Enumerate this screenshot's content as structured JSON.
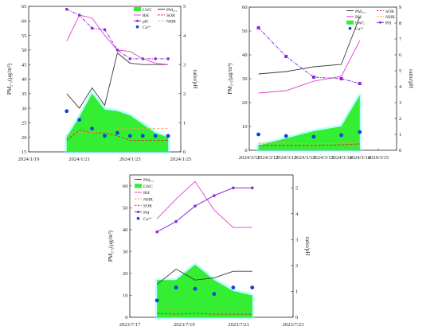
{
  "colors": {
    "pm": "#3a3a3a",
    "rh": "#e040d0",
    "ph": "#8a2ad8",
    "ca": "#1440e0",
    "sor": "#e02020",
    "nhr": "#f0a040",
    "lwc_fill": "#33ee33",
    "lwc_glow": "#7fffff"
  },
  "chart_data": [
    {
      "id": "a",
      "type": "line",
      "xlabel": "",
      "ylabel": "PM₂.₅(μg/m³)",
      "ylabel2": "ratio/pH",
      "ylim": [
        15,
        65
      ],
      "y2lim": [
        0,
        5
      ],
      "xlim": [
        -1.5,
        4.5
      ],
      "yticks": [
        15,
        20,
        25,
        30,
        35,
        40,
        45,
        50,
        55,
        60,
        65
      ],
      "y2ticks": [
        0,
        1,
        2,
        3,
        4,
        5
      ],
      "xticks": [
        {
          "x": -1.5,
          "label": "2024/1/19"
        },
        {
          "x": 0.5,
          "label": "2024/1/21"
        },
        {
          "x": 2.5,
          "label": "2024/1/23"
        },
        {
          "x": 4.5,
          "label": "2024/1/25"
        }
      ],
      "grid": false,
      "legend_position": "top-right",
      "legend": [
        {
          "key": "lwc",
          "label": "LWC"
        },
        {
          "key": "pm",
          "label": "PM₂.₅"
        },
        {
          "key": "rh",
          "label": "RH"
        },
        {
          "key": "sor",
          "label": "SOR"
        },
        {
          "key": "ph",
          "label": "pH"
        },
        {
          "key": "nhr",
          "label": "NHR"
        },
        {
          "key": "ca",
          "label": "Ca²⁺"
        }
      ],
      "series": [
        {
          "key": "lwc",
          "axis": "left",
          "style": "area",
          "x": [
            0,
            0.5,
            1,
            1.5,
            2,
            2.5,
            3,
            3.5,
            4
          ],
          "y": [
            20,
            27,
            35,
            29.5,
            29,
            27.5,
            24.5,
            21.5,
            20
          ]
        },
        {
          "key": "pm",
          "axis": "left",
          "style": "line",
          "x": [
            0,
            0.5,
            1,
            1.5,
            2,
            2.5,
            3,
            3.5,
            4
          ],
          "y": [
            35,
            30,
            37,
            31,
            49,
            45.5,
            45,
            45,
            45
          ]
        },
        {
          "key": "rh",
          "axis": "left",
          "style": "line",
          "x": [
            0,
            0.5,
            1,
            1.5,
            2,
            2.5,
            3,
            3.5,
            4
          ],
          "y": [
            53,
            62,
            61,
            55,
            50,
            49.5,
            47,
            45.5,
            45
          ]
        },
        {
          "key": "ph",
          "axis": "right",
          "style": "dashdot-marker",
          "x": [
            0,
            0.5,
            1,
            1.5,
            2,
            2.5,
            3,
            3.5,
            4
          ],
          "y": [
            4.9,
            4.7,
            4.25,
            4.2,
            3.5,
            3.2,
            3.2,
            3.2,
            3.2
          ]
        },
        {
          "key": "ca",
          "axis": "right",
          "style": "points",
          "x": [
            0,
            0.5,
            1,
            1.5,
            2,
            2.5,
            3,
            3.5,
            4
          ],
          "y": [
            1.4,
            1.1,
            0.8,
            0.55,
            0.65,
            0.55,
            0.55,
            0.55,
            0.55
          ]
        },
        {
          "key": "sor",
          "axis": "right",
          "style": "dashed",
          "x": [
            0,
            0.5,
            1,
            1.5,
            2,
            2.5,
            3,
            3.5,
            4
          ],
          "y": [
            0.4,
            0.75,
            0.65,
            0.65,
            0.55,
            0.4,
            0.4,
            0.4,
            0.4
          ]
        },
        {
          "key": "nhr",
          "axis": "right",
          "style": "dashed",
          "x": [
            0,
            0.5,
            1,
            1.5,
            2,
            2.5,
            3,
            3.5,
            4
          ],
          "y": [
            0.55,
            0.7,
            0.65,
            0.7,
            0.8,
            0.8,
            0.8,
            0.8,
            0.8
          ]
        }
      ]
    },
    {
      "id": "b",
      "type": "line",
      "xlabel": "",
      "ylabel": "PM₂.₅(μg/m³)",
      "ylabel2": "ratio/pH",
      "ylim": [
        0,
        60
      ],
      "y2lim": [
        0,
        9
      ],
      "xlim": [
        0,
        4
      ],
      "yticks": [
        0,
        10,
        20,
        30,
        40,
        50,
        60
      ],
      "y2ticks": [
        0,
        1,
        2,
        3,
        4,
        5,
        6,
        7,
        8,
        9
      ],
      "xticks": [
        {
          "x": 0,
          "label": "2024/3/11"
        },
        {
          "x": 0.5,
          "label": "2024/3/12"
        },
        {
          "x": 1,
          "label": "2024/3/12"
        },
        {
          "x": 1.5,
          "label": "2024/3/13"
        },
        {
          "x": 2,
          "label": "2024/3/13"
        },
        {
          "x": 2.5,
          "label": "2024/3/14"
        },
        {
          "x": 3,
          "label": "2024/3/14"
        },
        {
          "x": 3.5,
          "label": "2024/3/15"
        }
      ],
      "grid": false,
      "legend_position": "top-left",
      "legend": [
        {
          "key": "pm",
          "label": "PM₂.₅"
        },
        {
          "key": "sor",
          "label": "SOR"
        },
        {
          "key": "rh",
          "label": "RH"
        },
        {
          "key": "nhr",
          "label": "NHR"
        },
        {
          "key": "lwc",
          "label": "LWC"
        },
        {
          "key": "ph",
          "label": "PH"
        },
        {
          "key": "ca",
          "label": "Ca²⁺"
        }
      ],
      "series": [
        {
          "key": "lwc",
          "axis": "left",
          "style": "area",
          "x": [
            0.25,
            1.0,
            1.75,
            2.5,
            3.0
          ],
          "y": [
            2,
            5,
            8,
            10,
            23
          ]
        },
        {
          "key": "pm",
          "axis": "left",
          "style": "line",
          "x": [
            0.25,
            1.0,
            1.75,
            2.5,
            3.0
          ],
          "y": [
            32,
            33,
            35,
            36,
            56
          ]
        },
        {
          "key": "rh",
          "axis": "left",
          "style": "line",
          "x": [
            0.25,
            1.0,
            1.75,
            2.5,
            3.0
          ],
          "y": [
            24,
            25,
            29,
            31,
            46
          ]
        },
        {
          "key": "ph",
          "axis": "right",
          "style": "dashdot-marker",
          "x": [
            0.25,
            1.0,
            1.75,
            2.5,
            3.0
          ],
          "y": [
            7.7,
            5.9,
            4.6,
            4.5,
            4.2
          ]
        },
        {
          "key": "ca",
          "axis": "right",
          "style": "points",
          "x": [
            0.25,
            1.0,
            1.75,
            2.5,
            3.0
          ],
          "y": [
            1.0,
            0.9,
            0.85,
            0.95,
            1.15
          ]
        },
        {
          "key": "sor",
          "axis": "right",
          "style": "dashed",
          "x": [
            0.25,
            1.0,
            1.75,
            2.5,
            3.0
          ],
          "y": [
            0.3,
            0.3,
            0.3,
            0.35,
            0.4
          ]
        },
        {
          "key": "nhr",
          "axis": "right",
          "style": "dashed",
          "x": [
            0.25,
            1.0,
            1.75,
            2.5,
            3.0
          ],
          "y": [
            0.45,
            0.45,
            0.4,
            0.45,
            0.5
          ]
        }
      ]
    },
    {
      "id": "c",
      "type": "line",
      "xlabel": "",
      "ylabel": "PM₂.₅(μg/m³)",
      "ylabel2": "ratio/pH",
      "ylim": [
        0,
        65
      ],
      "y2lim": [
        0,
        5.5
      ],
      "xlim": [
        0,
        3
      ],
      "yticks": [
        0,
        10,
        20,
        30,
        40,
        50,
        60
      ],
      "y2ticks": [
        0,
        1,
        2,
        3,
        4,
        5
      ],
      "xticks": [
        {
          "x": 0,
          "label": "2023/7/17"
        },
        {
          "x": 1,
          "label": "2023/7/19"
        },
        {
          "x": 2,
          "label": "2023/7/21"
        },
        {
          "x": 3,
          "label": "2023/7/23"
        }
      ],
      "grid": false,
      "legend_position": "top-left",
      "legend": [
        {
          "key": "pm",
          "label": "PM₂.₅"
        },
        {
          "key": "lwc",
          "label": "LWC"
        },
        {
          "key": "rh",
          "label": "RH"
        },
        {
          "key": "nhr",
          "label": "NHR"
        },
        {
          "key": "sor",
          "label": "SOR"
        },
        {
          "key": "ph",
          "label": "PH"
        },
        {
          "key": "ca",
          "label": "Ca²⁺"
        }
      ],
      "series": [
        {
          "key": "lwc",
          "axis": "left",
          "style": "area",
          "x": [
            0.5,
            0.85,
            1.2,
            1.55,
            1.9,
            2.25
          ],
          "y": [
            17,
            17,
            24,
            17,
            12,
            10
          ]
        },
        {
          "key": "pm",
          "axis": "left",
          "style": "line",
          "x": [
            0.5,
            0.85,
            1.2,
            1.55,
            1.9,
            2.25
          ],
          "y": [
            15,
            22,
            17,
            18,
            21,
            21
          ]
        },
        {
          "key": "rh",
          "axis": "left",
          "style": "line",
          "x": [
            0.5,
            0.85,
            1.2,
            1.55,
            1.9,
            2.25
          ],
          "y": [
            45,
            54,
            62,
            49,
            41,
            41
          ]
        },
        {
          "key": "ph",
          "axis": "right",
          "style": "line-marker",
          "x": [
            0.5,
            0.85,
            1.2,
            1.55,
            1.9,
            2.25
          ],
          "y": [
            3.3,
            3.7,
            4.3,
            4.7,
            5.0,
            5.0
          ]
        },
        {
          "key": "ca",
          "axis": "right",
          "style": "points",
          "x": [
            0.5,
            0.85,
            1.2,
            1.55,
            1.9,
            2.25
          ],
          "y": [
            0.65,
            1.15,
            1.1,
            0.9,
            1.15,
            1.15
          ]
        },
        {
          "key": "nhr",
          "axis": "right",
          "style": "dashed",
          "x": [
            0.5,
            0.85,
            1.2,
            1.55,
            1.9,
            2.25
          ],
          "y": [
            0.4,
            0.3,
            0.3,
            0.3,
            0.3,
            0.3
          ]
        },
        {
          "key": "sor",
          "axis": "right",
          "style": "dashed",
          "x": [
            0.5,
            0.85,
            1.2,
            1.55,
            1.9,
            2.25
          ],
          "y": [
            0.15,
            0.12,
            0.15,
            0.12,
            0.12,
            0.12
          ]
        }
      ]
    }
  ]
}
